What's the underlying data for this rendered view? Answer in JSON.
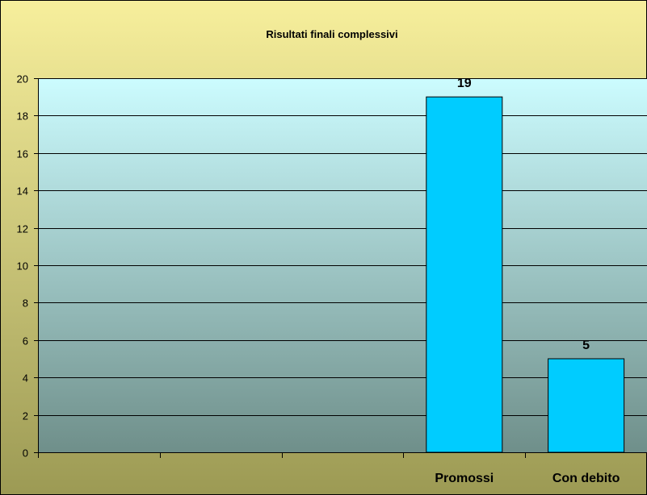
{
  "chart_data": {
    "type": "bar",
    "title": "Risultati finali complessivi",
    "xlabel": "",
    "ylabel": "",
    "categories": [
      "",
      "",
      "",
      "Promossi",
      "Con debito"
    ],
    "values": [
      null,
      null,
      null,
      19,
      5
    ],
    "data_labels": [
      "",
      "",
      "",
      "19",
      "5"
    ],
    "ylim": [
      0,
      20
    ],
    "yticks": [
      "0",
      "2",
      "4",
      "6",
      "8",
      "10",
      "12",
      "14",
      "16",
      "18",
      "20"
    ],
    "grid": true,
    "legend": "none"
  },
  "colors": {
    "outer_background": "#9c9a54",
    "outer_background_top": "#f7ef9c",
    "plot_background_top": "#ccfcff",
    "plot_background_bottom": "#6f8f8a",
    "bar_fill": "#00ccff",
    "bar_stroke": "#000000",
    "gridline": "#000000"
  }
}
